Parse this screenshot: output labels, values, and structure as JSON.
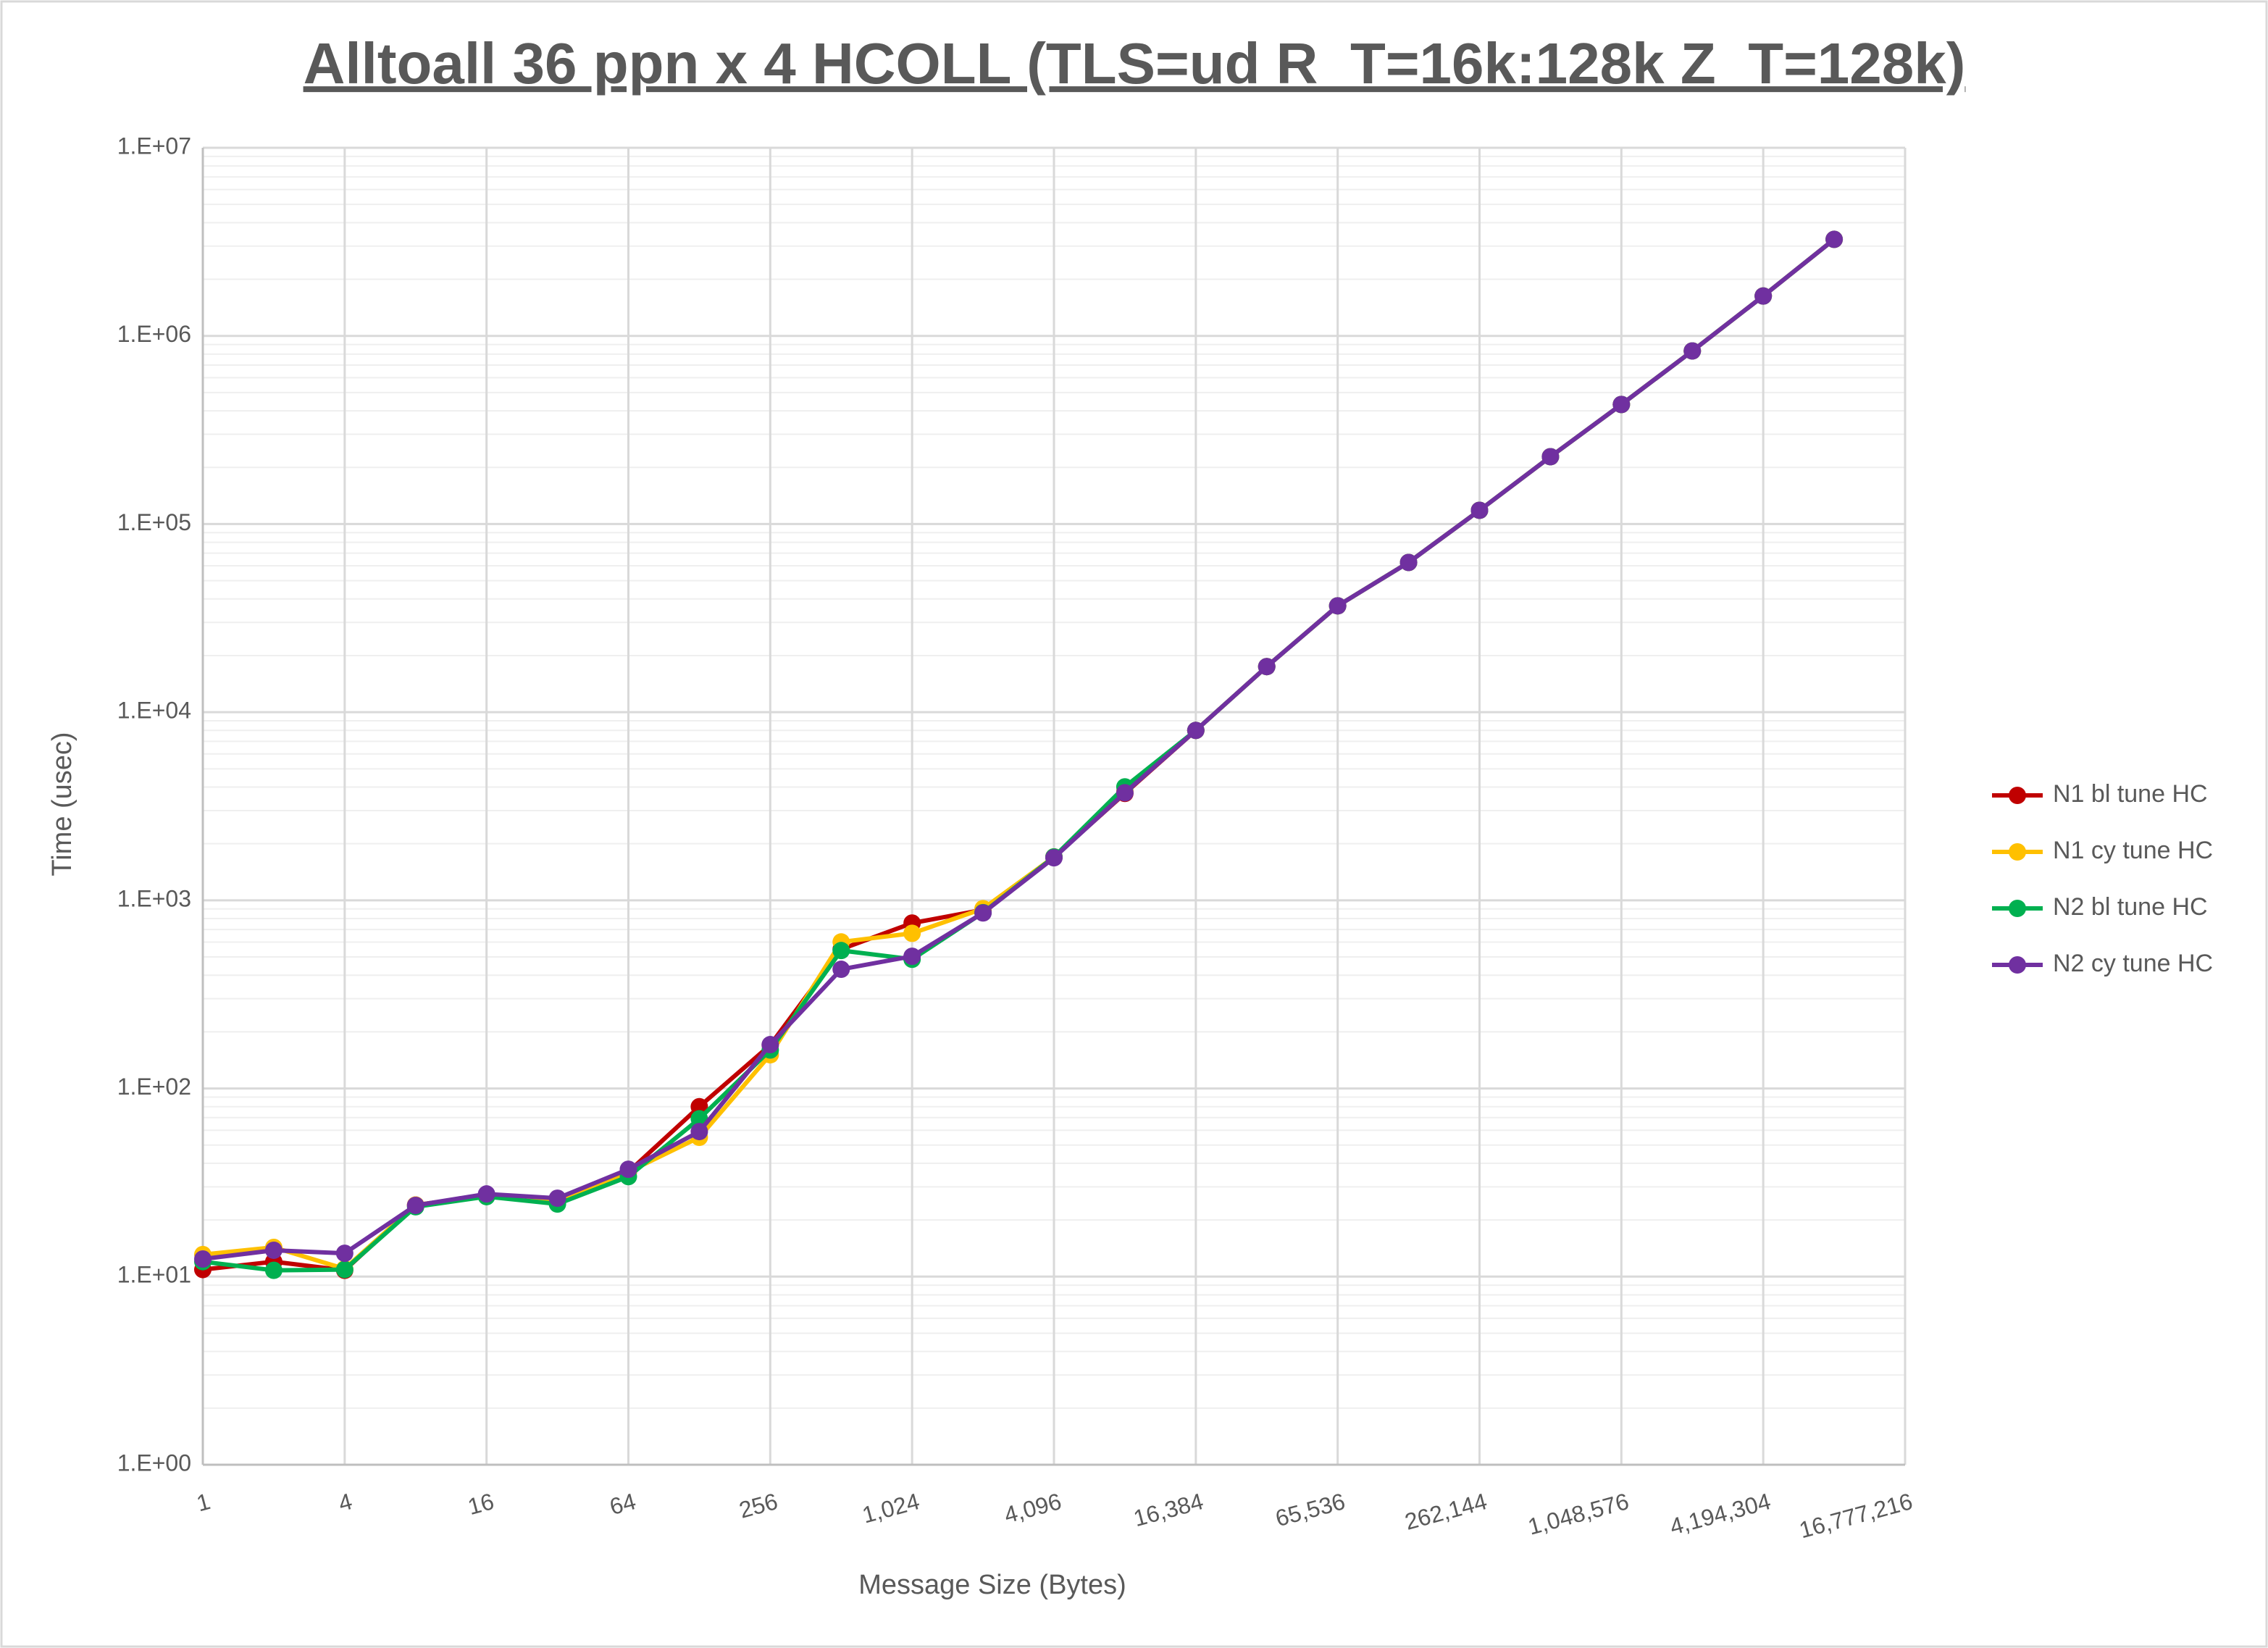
{
  "chart_data": {
    "type": "line",
    "title": "Alltoall 36 ppn x 4 HCOLL (TLS=ud R_T=16k:128k Z_T=128k)",
    "x_label": "Message Size (Bytes)",
    "y_label": "Time (usec)",
    "x_scale": "log",
    "y_scale": "log",
    "grid": true,
    "legend": "right",
    "x": [
      1,
      2,
      4,
      8,
      16,
      32,
      64,
      128,
      256,
      512,
      1024,
      2048,
      4096,
      8192,
      16384,
      32768,
      65536,
      131072,
      262144,
      524288,
      1048576,
      2097152,
      4194304,
      8388608
    ],
    "xlim": [
      1,
      16777216
    ],
    "xticks": [
      1,
      4,
      16,
      64,
      256,
      {
        "value": 1024,
        "label": "1,024"
      },
      {
        "value": 4096,
        "label": "4,096"
      },
      {
        "value": 16384,
        "label": "16,384"
      },
      {
        "value": 65536,
        "label": "65,536"
      },
      {
        "value": 262144,
        "label": "262,144"
      },
      {
        "value": 1048576,
        "label": "1,048,576"
      },
      {
        "value": 4194304,
        "label": "4,194,304"
      },
      {
        "value": 16777216,
        "label": "16,777,216"
      }
    ],
    "ylim": [
      1,
      10000000
    ],
    "yticks": [
      {
        "value": 1,
        "label": "1.E+00"
      },
      {
        "value": 10,
        "label": "1.E+01"
      },
      {
        "value": 100,
        "label": "1.E+02"
      },
      {
        "value": 1000,
        "label": "1.E+03"
      },
      {
        "value": 10000,
        "label": "1.E+04"
      },
      {
        "value": 100000,
        "label": "1.E+05"
      },
      {
        "value": 1000000,
        "label": "1.E+06"
      },
      {
        "value": 10000000,
        "label": "1.E+07"
      }
    ],
    "series": [
      {
        "name": "N1 bl tune HC",
        "color": "#c00000",
        "values": [
          10.9,
          12.0,
          10.8,
          24,
          27,
          26,
          36,
          80,
          170,
          550,
          757,
          890,
          1700,
          3700,
          8000,
          17470,
          36750,
          62500,
          118300,
          228000,
          432000,
          832000,
          1630000,
          3260000
        ]
      },
      {
        "name": "N1 cy tune HC",
        "color": "#ffc000",
        "values": [
          13.1,
          14.3,
          11,
          24,
          27,
          25,
          36,
          55,
          151,
          601,
          668,
          903,
          1700,
          3800,
          8000,
          17470,
          36750,
          62500,
          118300,
          228000,
          432000,
          832000,
          1630000,
          3260000
        ]
      },
      {
        "name": "N2 bl tune HC",
        "color": "#00b050",
        "values": [
          12,
          10.8,
          10.9,
          23.5,
          26.6,
          24.3,
          34,
          69,
          160,
          541,
          486,
          860,
          1700,
          4010,
          8000,
          17470,
          36750,
          62500,
          118300,
          228000,
          432000,
          832000,
          1630000,
          3260000
        ]
      },
      {
        "name": "N2 cy tune HC",
        "color": "#7030a0",
        "values": [
          12.4,
          13.8,
          13.3,
          23.9,
          27.5,
          26.1,
          37.2,
          59,
          171,
          430,
          504,
          857,
          1683,
          3730,
          8000,
          17470,
          36750,
          62500,
          118300,
          228000,
          432000,
          832000,
          1630000,
          3260000
        ]
      }
    ]
  }
}
